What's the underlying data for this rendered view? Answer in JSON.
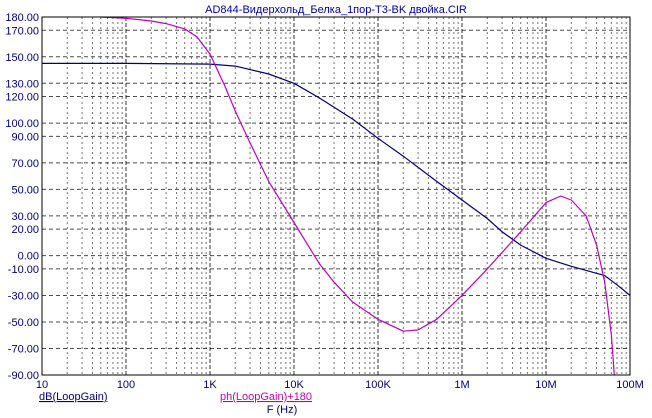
{
  "chart_data": {
    "type": "line",
    "title": "AD844-Видерхольд_Белка_1пор-T3-BK двойка.CIR",
    "xlabel": "F (Hz)",
    "x_scale": "log",
    "xlim": [
      10,
      100000000
    ],
    "ylim": [
      -90,
      180
    ],
    "grid": true,
    "x_ticks": [
      {
        "value": 10,
        "label": "10"
      },
      {
        "value": 100,
        "label": "100"
      },
      {
        "value": 1000,
        "label": "1K"
      },
      {
        "value": 10000,
        "label": "10K"
      },
      {
        "value": 100000,
        "label": "100K"
      },
      {
        "value": 1000000,
        "label": "1M"
      },
      {
        "value": 10000000,
        "label": "10M"
      },
      {
        "value": 100000000,
        "label": "100M"
      }
    ],
    "y_ticks": [
      {
        "value": 180,
        "label": "180.00"
      },
      {
        "value": 170,
        "label": "170.00"
      },
      {
        "value": 150,
        "label": "150.00"
      },
      {
        "value": 130,
        "label": "130.00"
      },
      {
        "value": 120,
        "label": "120.00"
      },
      {
        "value": 100,
        "label": "100.00"
      },
      {
        "value": 90,
        "label": "90.00"
      },
      {
        "value": 70,
        "label": "70.00"
      },
      {
        "value": 50,
        "label": "50.00"
      },
      {
        "value": 30,
        "label": "30.00"
      },
      {
        "value": 20,
        "label": "20.00"
      },
      {
        "value": 0,
        "label": "0.00"
      },
      {
        "value": -10,
        "label": "-10.00"
      },
      {
        "value": -30,
        "label": "-30.00"
      },
      {
        "value": -50,
        "label": "-50.00"
      },
      {
        "value": -70,
        "label": "-70.00"
      },
      {
        "value": -90,
        "label": "-90.00"
      }
    ],
    "series": [
      {
        "name": "dB(LoopGain)",
        "color": "#000080",
        "points": [
          [
            10,
            145
          ],
          [
            100,
            145
          ],
          [
            1000,
            144.5
          ],
          [
            2000,
            143
          ],
          [
            5000,
            137
          ],
          [
            10000,
            130
          ],
          [
            20000,
            119
          ],
          [
            50000,
            103
          ],
          [
            100000,
            88.5
          ],
          [
            200000,
            75
          ],
          [
            500000,
            56
          ],
          [
            1000000,
            42
          ],
          [
            2000000,
            28
          ],
          [
            3000000,
            18
          ],
          [
            5000000,
            8
          ],
          [
            10000000,
            -2
          ],
          [
            20000000,
            -8
          ],
          [
            50000000,
            -15
          ],
          [
            70000000,
            -22
          ],
          [
            100000000,
            -30
          ]
        ]
      },
      {
        "name": "ph(LoopGain)+180",
        "color": "#c000c0",
        "points": [
          [
            50,
            180
          ],
          [
            100,
            179
          ],
          [
            200,
            177
          ],
          [
            300,
            175
          ],
          [
            500,
            171
          ],
          [
            700,
            165
          ],
          [
            1000,
            152
          ],
          [
            1500,
            128
          ],
          [
            2000,
            109
          ],
          [
            3000,
            85
          ],
          [
            5000,
            56
          ],
          [
            10000,
            25
          ],
          [
            20000,
            -6
          ],
          [
            30000,
            -20
          ],
          [
            50000,
            -35
          ],
          [
            100000,
            -48
          ],
          [
            200000,
            -57
          ],
          [
            300000,
            -56
          ],
          [
            500000,
            -48
          ],
          [
            1000000,
            -30
          ],
          [
            2000000,
            -10
          ],
          [
            5000000,
            18
          ],
          [
            10000000,
            40
          ],
          [
            15000000,
            45
          ],
          [
            20000000,
            42
          ],
          [
            30000000,
            30
          ],
          [
            40000000,
            8
          ],
          [
            50000000,
            -20
          ],
          [
            60000000,
            -60
          ],
          [
            65000000,
            -90
          ]
        ]
      }
    ]
  }
}
